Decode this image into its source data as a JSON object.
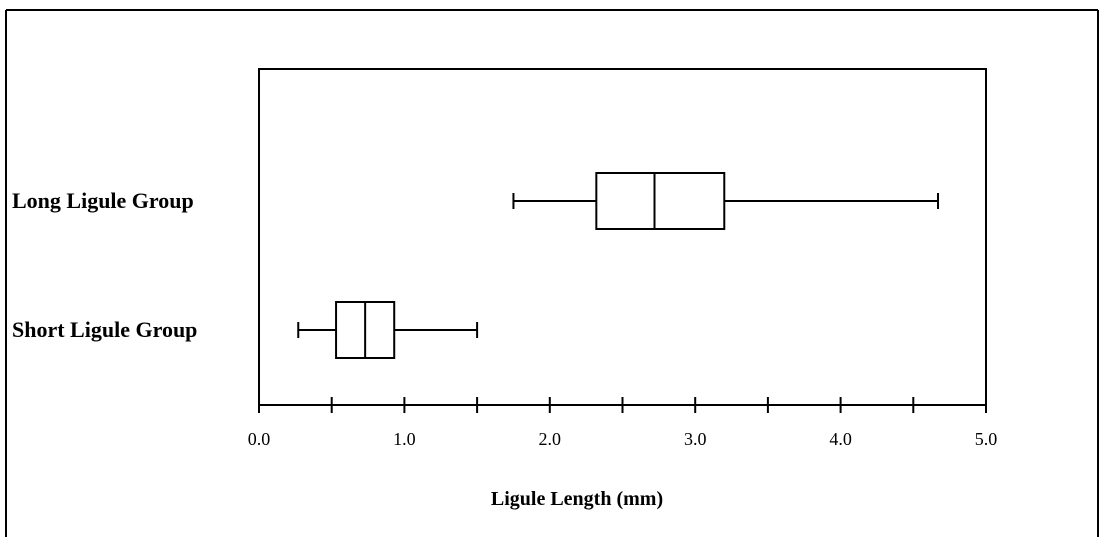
{
  "chart_data": {
    "type": "boxplot",
    "title": "",
    "xlabel": "Ligule Length (mm)",
    "ylabel": "",
    "xlim": [
      0.0,
      5.0
    ],
    "x_ticks": [
      "0.0",
      "1.0",
      "2.0",
      "3.0",
      "4.0",
      "5.0"
    ],
    "x_tick_values": [
      0.0,
      1.0,
      2.0,
      3.0,
      4.0,
      5.0
    ],
    "x_minor_tick_values": [
      0.5,
      1.5,
      2.5,
      3.5,
      4.5
    ],
    "grid": false,
    "categories": [
      "Long Ligule Group",
      "Short Ligule Group"
    ],
    "boxes": [
      {
        "name": "Long Ligule Group",
        "min": 1.75,
        "q1": 2.32,
        "median": 2.72,
        "q3": 3.2,
        "max": 4.67
      },
      {
        "name": "Short Ligule Group",
        "min": 0.27,
        "q1": 0.53,
        "median": 0.73,
        "q3": 0.93,
        "max": 1.5
      }
    ]
  }
}
